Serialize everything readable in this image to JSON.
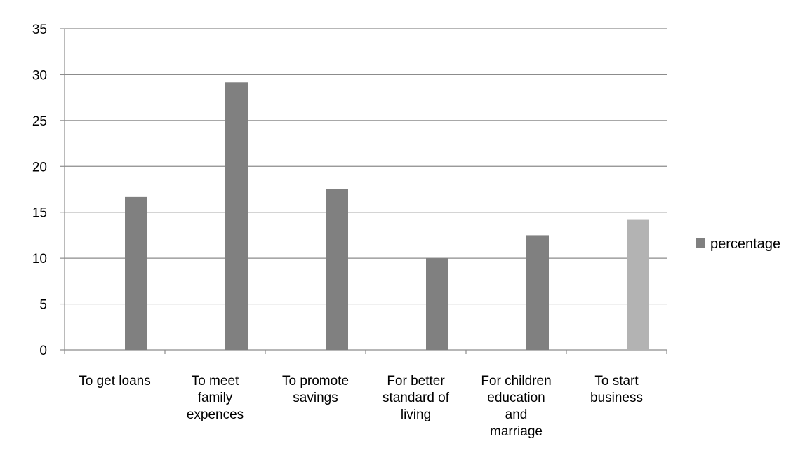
{
  "chart_data": {
    "type": "bar",
    "title": "",
    "xlabel": "",
    "ylabel": "",
    "categories": [
      [
        "To get loans"
      ],
      [
        "To meet",
        "family",
        "expences"
      ],
      [
        "To promote",
        "savings"
      ],
      [
        "For better",
        "standard of",
        "living"
      ],
      [
        "For children",
        "education",
        "and",
        "marriage"
      ],
      [
        "To start",
        "business"
      ]
    ],
    "series": [
      {
        "name": "percentage",
        "values": [
          16.67,
          29.17,
          17.5,
          10.0,
          12.5,
          14.17
        ],
        "colors": [
          "#808080",
          "#808080",
          "#808080",
          "#808080",
          "#808080",
          "#b3b3b3"
        ]
      }
    ],
    "ylim": [
      0,
      35
    ],
    "yticks": [
      "0",
      "5",
      "10",
      "15",
      "20",
      "25",
      "30",
      "35"
    ],
    "grid": true,
    "legend": "right"
  }
}
